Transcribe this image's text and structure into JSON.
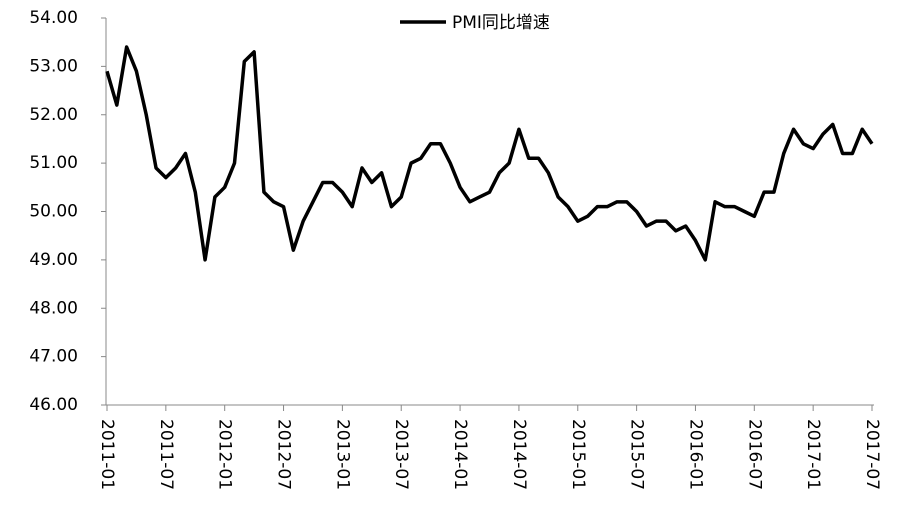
{
  "chart_data": {
    "type": "line",
    "categories": [
      "2011-01",
      null,
      null,
      null,
      null,
      null,
      "2011-07",
      null,
      null,
      null,
      null,
      null,
      "2012-01",
      null,
      null,
      null,
      null,
      null,
      "2012-07",
      null,
      null,
      null,
      null,
      null,
      "2013-01",
      null,
      null,
      null,
      null,
      null,
      "2013-07",
      null,
      null,
      null,
      null,
      null,
      "2014-01",
      null,
      null,
      null,
      null,
      null,
      "2014-07",
      null,
      null,
      null,
      null,
      null,
      "2015-01",
      null,
      null,
      null,
      null,
      null,
      "2015-07",
      null,
      null,
      null,
      null,
      null,
      "2016-01",
      null,
      null,
      null,
      null,
      null,
      "2016-07",
      null,
      null,
      null,
      null,
      null,
      "2017-01",
      null,
      null,
      null,
      null,
      null,
      "2017-07"
    ],
    "series": [
      {
        "name": "PMI同比增速",
        "color": "#000000",
        "values": [
          52.9,
          52.2,
          53.4,
          52.9,
          52.0,
          50.9,
          50.7,
          50.9,
          51.2,
          50.4,
          49.0,
          50.3,
          50.5,
          51.0,
          53.1,
          53.3,
          50.4,
          50.2,
          50.1,
          49.2,
          49.8,
          50.2,
          50.6,
          50.6,
          50.4,
          50.1,
          50.9,
          50.6,
          50.8,
          50.1,
          50.3,
          51.0,
          51.1,
          51.4,
          51.4,
          51.0,
          50.5,
          50.2,
          50.3,
          50.4,
          50.8,
          51.0,
          51.7,
          51.1,
          51.1,
          50.8,
          50.3,
          50.1,
          49.8,
          49.9,
          50.1,
          50.1,
          50.2,
          50.2,
          50.0,
          49.7,
          49.8,
          49.8,
          49.6,
          49.7,
          49.4,
          49.0,
          50.2,
          50.1,
          50.1,
          50.0,
          49.9,
          50.4,
          50.4,
          51.2,
          51.7,
          51.4,
          51.3,
          51.6,
          51.8,
          51.2,
          51.2,
          51.7,
          51.4
        ]
      }
    ],
    "ylim": [
      46,
      54
    ],
    "yticks": [
      {
        "value": 46,
        "label": "46.00"
      },
      {
        "value": 47,
        "label": "47.00"
      },
      {
        "value": 48,
        "label": "48.00"
      },
      {
        "value": 49,
        "label": "49.00"
      },
      {
        "value": 50,
        "label": "50.00"
      },
      {
        "value": 51,
        "label": "51.00"
      },
      {
        "value": 52,
        "label": "52.00"
      },
      {
        "value": 53,
        "label": "53.00"
      },
      {
        "value": 54,
        "label": "54.00"
      }
    ],
    "grid": false,
    "legend": "top"
  }
}
